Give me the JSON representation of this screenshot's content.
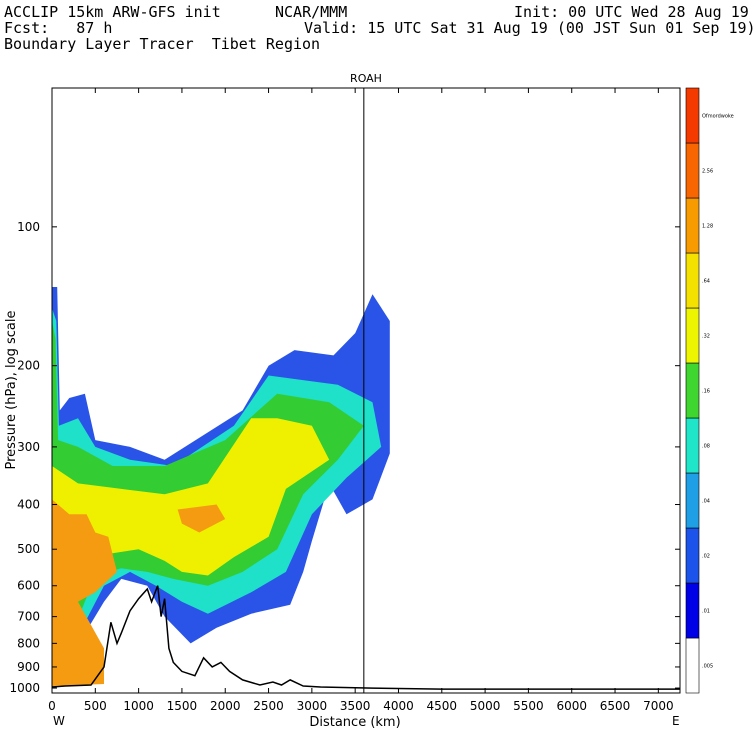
{
  "header": {
    "left_line1": "ACCLIP 15km ARW-GFS init",
    "left_line2": "Fcst:   87 h",
    "left_line3": "Boundary Layer Tracer  Tibet Region",
    "center_line1": "NCAR/MMM",
    "right_line1": "Init: 00 UTC Wed 28 Aug 19",
    "right_line2": "Valid: 15 UTC Sat 31 Aug 19 (00 JST Sun 01 Sep 19)"
  },
  "chart_data": {
    "type": "heatmap",
    "title": "ROAH",
    "xlabel": "Distance (km)",
    "ylabel": "Pressure (hPa), log scale",
    "x_ticks": [
      0,
      500,
      1000,
      1500,
      2000,
      2500,
      3000,
      3500,
      4000,
      4500,
      5000,
      5500,
      6000,
      6500,
      7000
    ],
    "x_tick_labels": [
      "0",
      "500",
      "1000",
      "1500",
      "2000",
      "2500",
      "3000",
      "3500",
      "4000",
      "4500",
      "5000",
      "5500",
      "6000",
      "6500",
      "7000"
    ],
    "xlim": [
      0,
      7250
    ],
    "y_ticks": [
      100,
      200,
      300,
      400,
      500,
      600,
      700,
      800,
      900,
      1000
    ],
    "y_tick_labels": [
      "100",
      "200",
      "300",
      "400",
      "500",
      "600",
      "700",
      "800",
      "900",
      "1000"
    ],
    "ylim": [
      1025,
      50
    ],
    "y_scale": "log",
    "x_end_labels": {
      "left": "W",
      "right": "E"
    },
    "marker_line_x": 3600,
    "colorbar": {
      "levels": [
        ".005",
        ".01",
        ".02",
        ".04",
        ".08",
        ".16",
        ".32",
        ".64",
        "1.28",
        "2.56",
        "Ofmordwoke"
      ],
      "colors": [
        "#ffffff",
        "#0000e6",
        "#1c53ea",
        "#1f9fe6",
        "#1fe6c8",
        "#3fd62f",
        "#eef500",
        "#f5e100",
        "#f79b00",
        "#f76600",
        "#f53a00"
      ]
    },
    "tracer_regions": [
      {
        "class": "blue",
        "color": "#2a54e8",
        "polygon": [
          [
            0,
            135
          ],
          [
            60,
            135
          ],
          [
            90,
            250
          ],
          [
            200,
            235
          ],
          [
            380,
            230
          ],
          [
            500,
            290
          ],
          [
            900,
            300
          ],
          [
            1300,
            320
          ],
          [
            2200,
            250
          ],
          [
            2500,
            200
          ],
          [
            2800,
            185
          ],
          [
            3250,
            190
          ],
          [
            3500,
            170
          ],
          [
            3700,
            140
          ],
          [
            3900,
            160
          ],
          [
            3900,
            310
          ],
          [
            3700,
            390
          ],
          [
            3400,
            420
          ],
          [
            3200,
            360
          ],
          [
            3000,
            480
          ],
          [
            2900,
            560
          ],
          [
            2750,
            660
          ],
          [
            2300,
            690
          ],
          [
            1900,
            740
          ],
          [
            1600,
            800
          ],
          [
            1300,
            700
          ],
          [
            1100,
            600
          ],
          [
            800,
            580
          ],
          [
            600,
            650
          ],
          [
            0,
            1000
          ]
        ]
      },
      {
        "class": "teal",
        "color": "#1fe0c8",
        "polygon": [
          [
            0,
            150
          ],
          [
            50,
            160
          ],
          [
            80,
            270
          ],
          [
            300,
            260
          ],
          [
            500,
            300
          ],
          [
            900,
            320
          ],
          [
            1400,
            330
          ],
          [
            2100,
            270
          ],
          [
            2500,
            210
          ],
          [
            3300,
            220
          ],
          [
            3700,
            240
          ],
          [
            3800,
            300
          ],
          [
            3400,
            350
          ],
          [
            3000,
            420
          ],
          [
            2700,
            560
          ],
          [
            2300,
            620
          ],
          [
            1800,
            690
          ],
          [
            1500,
            650
          ],
          [
            1200,
            600
          ],
          [
            900,
            560
          ],
          [
            600,
            600
          ],
          [
            0,
            990
          ]
        ]
      },
      {
        "class": "green",
        "color": "#33cc33",
        "polygon": [
          [
            0,
            160
          ],
          [
            40,
            175
          ],
          [
            70,
            290
          ],
          [
            300,
            300
          ],
          [
            700,
            330
          ],
          [
            1300,
            330
          ],
          [
            2000,
            290
          ],
          [
            2600,
            230
          ],
          [
            3200,
            240
          ],
          [
            3600,
            270
          ],
          [
            3300,
            320
          ],
          [
            2900,
            380
          ],
          [
            2600,
            500
          ],
          [
            2200,
            560
          ],
          [
            1800,
            600
          ],
          [
            1400,
            580
          ],
          [
            1100,
            560
          ],
          [
            800,
            550
          ],
          [
            500,
            570
          ],
          [
            0,
            980
          ]
        ]
      },
      {
        "class": "yellow",
        "color": "#eef000",
        "polygon": [
          [
            0,
            330
          ],
          [
            300,
            360
          ],
          [
            800,
            370
          ],
          [
            1300,
            380
          ],
          [
            1800,
            360
          ],
          [
            2300,
            260
          ],
          [
            2600,
            260
          ],
          [
            3000,
            270
          ],
          [
            3200,
            320
          ],
          [
            2700,
            370
          ],
          [
            2500,
            470
          ],
          [
            2100,
            520
          ],
          [
            1800,
            570
          ],
          [
            1500,
            560
          ],
          [
            1300,
            530
          ],
          [
            1000,
            500
          ],
          [
            700,
            510
          ],
          [
            400,
            560
          ],
          [
            0,
            970
          ]
        ]
      },
      {
        "class": "orange",
        "color": "#f59b12",
        "polygon": [
          [
            0,
            390
          ],
          [
            200,
            420
          ],
          [
            400,
            420
          ],
          [
            500,
            460
          ],
          [
            650,
            470
          ],
          [
            750,
            560
          ],
          [
            500,
            620
          ],
          [
            300,
            650
          ],
          [
            600,
            820
          ],
          [
            600,
            980
          ],
          [
            0,
            990
          ]
        ]
      },
      {
        "class": "orange-pocket",
        "color": "#f59b12",
        "polygon": [
          [
            1450,
            410
          ],
          [
            1900,
            400
          ],
          [
            2000,
            430
          ],
          [
            1700,
            460
          ],
          [
            1500,
            440
          ]
        ]
      }
    ],
    "terrain": {
      "color": "#000000",
      "points": [
        [
          0,
          995
        ],
        [
          150,
          990
        ],
        [
          450,
          985
        ],
        [
          600,
          900
        ],
        [
          680,
          720
        ],
        [
          750,
          800
        ],
        [
          800,
          760
        ],
        [
          900,
          680
        ],
        [
          1000,
          640
        ],
        [
          1100,
          610
        ],
        [
          1150,
          650
        ],
        [
          1220,
          600
        ],
        [
          1260,
          700
        ],
        [
          1300,
          640
        ],
        [
          1350,
          820
        ],
        [
          1400,
          880
        ],
        [
          1500,
          920
        ],
        [
          1650,
          940
        ],
        [
          1750,
          860
        ],
        [
          1850,
          900
        ],
        [
          1950,
          880
        ],
        [
          2050,
          920
        ],
        [
          2200,
          960
        ],
        [
          2400,
          985
        ],
        [
          2550,
          970
        ],
        [
          2650,
          985
        ],
        [
          2750,
          960
        ],
        [
          2900,
          990
        ],
        [
          3100,
          995
        ],
        [
          3500,
          998
        ],
        [
          3700,
          1000
        ],
        [
          4500,
          1005
        ],
        [
          5500,
          1005
        ],
        [
          7250,
          1005
        ]
      ]
    }
  }
}
